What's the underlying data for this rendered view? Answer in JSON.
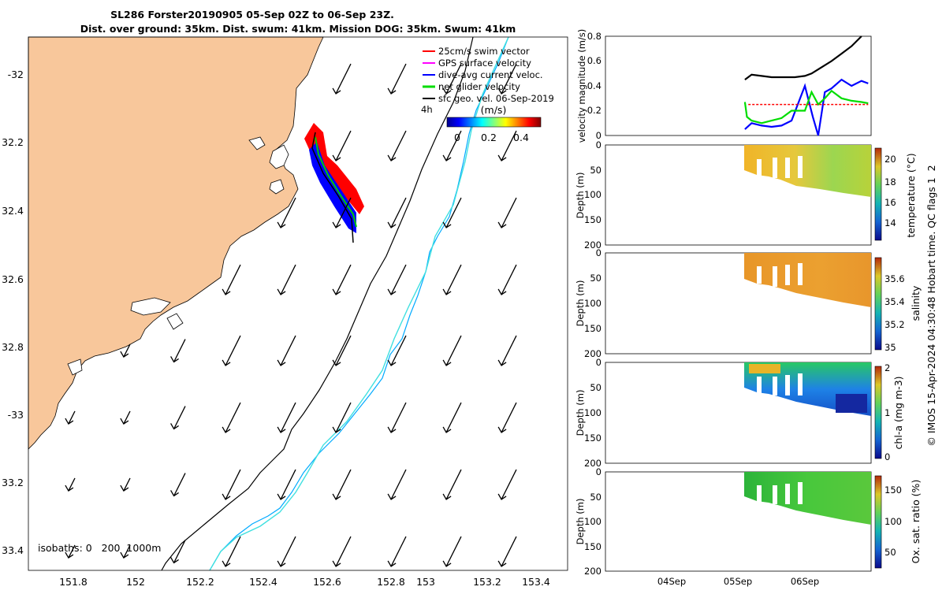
{
  "title": {
    "line1": "SL286 Forster20190905 05-Sep 02Z to 06-Sep 23Z.",
    "line2": "Dist. over ground: 35km. Dist. swum: 41km. Mission DOG: 35km. Swum: 41km"
  },
  "map": {
    "lon_ticks": [
      "151.8",
      "152",
      "152.2",
      "152.4",
      "152.6",
      "152.8",
      "153",
      "153.2",
      "153.4"
    ],
    "lat_ticks": [
      "-32",
      "32.2",
      "32.4",
      "32.6",
      "32.8",
      "-33",
      "33.2",
      "33.4"
    ],
    "legend": [
      {
        "label": "25cm/s swim vector",
        "color": "#ff0000"
      },
      {
        "label": "GPS surface velocity",
        "color": "#ff00ff"
      },
      {
        "label": "dive-avg current veloc.",
        "color": "#0000ff"
      },
      {
        "label": "net glider velocity",
        "color": "#00dd00"
      },
      {
        "label": "sfc geo. vel. 06-Sep-2019",
        "color": "#000000"
      }
    ],
    "time_step_label": "4h",
    "colorbar": {
      "unit": "(m/s)",
      "ticks": [
        "0",
        "0.2",
        "0.4"
      ]
    },
    "isobaths_label": "isobaths: 0   200  1000m",
    "colors": {
      "land": "#f8c79b",
      "isobath_200": "#000000",
      "isobath_1000": "#40e0e0"
    }
  },
  "chart_data": [
    {
      "type": "line",
      "ylabel": "velocity magnitude (m/s)",
      "ylim": [
        0,
        0.8
      ],
      "y_ticks": [
        "0",
        "0.2",
        "0.4",
        "0.6",
        "0.8"
      ],
      "x_ticks": [
        "04Sep",
        "05Sep",
        "06Sep"
      ],
      "series": [
        {
          "color": "#000000",
          "x": [
            5.1,
            5.2,
            5.35,
            5.5,
            5.7,
            5.85,
            6.0,
            6.1,
            6.25,
            6.4,
            6.55,
            6.7,
            6.85
          ],
          "values": [
            0.45,
            0.49,
            0.48,
            0.47,
            0.47,
            0.47,
            0.48,
            0.5,
            0.55,
            0.6,
            0.66,
            0.72,
            0.8
          ]
        },
        {
          "color": "#0000ff",
          "x": [
            5.1,
            5.2,
            5.35,
            5.5,
            5.65,
            5.8,
            6.0,
            6.12,
            6.2,
            6.3,
            6.4,
            6.55,
            6.7,
            6.85,
            6.95
          ],
          "values": [
            0.05,
            0.1,
            0.08,
            0.07,
            0.08,
            0.12,
            0.4,
            0.15,
            0.0,
            0.35,
            0.38,
            0.45,
            0.4,
            0.44,
            0.42
          ]
        },
        {
          "color": "#00dd00",
          "x": [
            5.1,
            5.13,
            5.2,
            5.35,
            5.5,
            5.65,
            5.8,
            6.0,
            6.1,
            6.2,
            6.3,
            6.4,
            6.55,
            6.7,
            6.85,
            6.95
          ],
          "values": [
            0.27,
            0.15,
            0.12,
            0.1,
            0.12,
            0.14,
            0.2,
            0.2,
            0.35,
            0.25,
            0.3,
            0.36,
            0.3,
            0.28,
            0.27,
            0.26
          ]
        },
        {
          "color": "#ff0000",
          "x": [
            5.15,
            6.95
          ],
          "values": [
            0.25,
            0.25
          ]
        }
      ]
    },
    {
      "type": "heatmap",
      "ylabel": "Depth (m)",
      "ylim": [
        0,
        200
      ],
      "y_ticks": [
        "0",
        "50",
        "100",
        "150",
        "200"
      ],
      "colorbar_label": "temperature (°C)",
      "cbar_ticks": [
        "20",
        "18",
        "16",
        "14"
      ]
    },
    {
      "type": "heatmap",
      "ylabel": "Depth (m)",
      "ylim": [
        0,
        200
      ],
      "y_ticks": [
        "0",
        "50",
        "100",
        "150",
        "200"
      ],
      "colorbar_label": "salinity",
      "cbar_ticks": [
        "35.6",
        "35.4",
        "35.2",
        "35"
      ]
    },
    {
      "type": "heatmap",
      "ylabel": "Depth (m)",
      "ylim": [
        0,
        200
      ],
      "y_ticks": [
        "0",
        "50",
        "100",
        "150",
        "200"
      ],
      "colorbar_label": "chl-a (mg m-3)",
      "cbar_ticks": [
        "2",
        "1",
        "0"
      ]
    },
    {
      "type": "heatmap",
      "ylabel": "Depth (m)",
      "ylim": [
        0,
        200
      ],
      "y_ticks": [
        "0",
        "50",
        "100",
        "150",
        "200"
      ],
      "colorbar_label": "Ox. sat. ratio (%)",
      "cbar_ticks": [
        "150",
        "100",
        "50"
      ]
    }
  ],
  "right_side_label": "© IMOS 15-Apr-2024 04:30:48 Hobart time. QC flags 1  2"
}
